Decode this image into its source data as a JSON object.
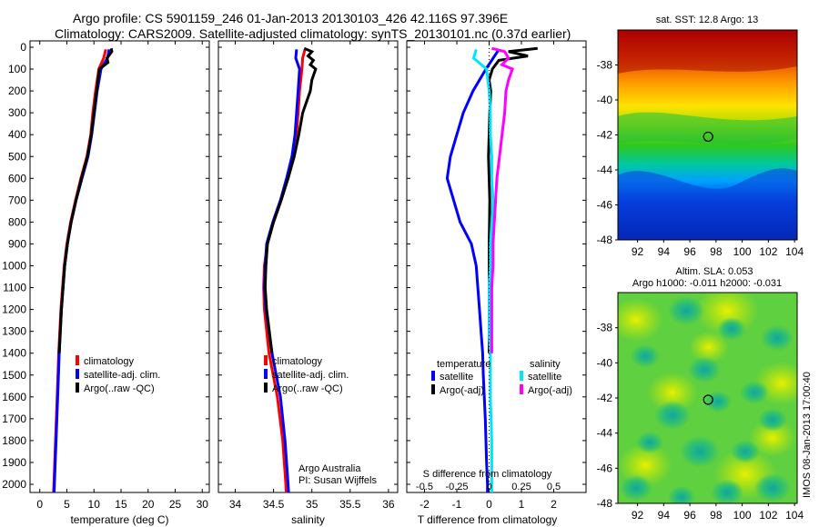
{
  "header": {
    "line1": "Argo profile: CS 5901159_246 01-Jan-2013 20130103_426 42.116S 97.396E",
    "line2": "Climatology: CARS2009. Satellite-adjusted climatology: synTS_20130101.nc (0.37d earlier)"
  },
  "side_stamp": "IMOS 08-Jan-2013 17:00:40",
  "depth_ticks": [
    "0",
    "100",
    "200",
    "300",
    "400",
    "500",
    "600",
    "700",
    "800",
    "900",
    "1000",
    "1100",
    "1200",
    "1300",
    "1400",
    "1500",
    "1600",
    "1700",
    "1800",
    "1900",
    "2000"
  ],
  "colors": {
    "climatology": "#ff0000",
    "satellite": "#0000ff",
    "argo": "#000000",
    "diff_s_sat": "#00e5ff",
    "diff_s_argo": "#ff00ff"
  },
  "chart_data": [
    {
      "type": "line",
      "panel": "temperature",
      "xlabel": "temperature (deg C)",
      "ylabel": "",
      "xlim": [
        -1,
        31
      ],
      "ylim": [
        2080,
        0
      ],
      "x_ticks": [
        "0",
        "5",
        "10",
        "15",
        "20",
        "25",
        "30"
      ],
      "legend": [
        "climatology",
        "satellite-adj. clim.",
        "Argo(..raw -QC)"
      ],
      "series": [
        {
          "name": "climatology",
          "depth": [
            10,
            50,
            100,
            200,
            300,
            400,
            500,
            600,
            700,
            800,
            900,
            1000,
            1200,
            1400,
            1600,
            1800,
            2000,
            2060
          ],
          "values": [
            12.2,
            11.8,
            10.9,
            10.3,
            9.8,
            9.4,
            8.7,
            7.6,
            6.6,
            5.7,
            5.0,
            4.5,
            3.9,
            3.5,
            3.2,
            2.9,
            2.6,
            2.5
          ]
        },
        {
          "name": "satellite-adj. clim.",
          "depth": [
            10,
            50,
            100,
            200,
            300,
            400,
            500,
            600,
            700,
            800,
            900,
            1000,
            1200,
            1400,
            1600,
            1800,
            2000,
            2060
          ],
          "values": [
            12.8,
            12.5,
            11.3,
            10.6,
            10.1,
            9.6,
            8.9,
            7.8,
            6.7,
            5.8,
            5.1,
            4.6,
            4.0,
            3.6,
            3.3,
            3.0,
            2.7,
            2.6
          ]
        },
        {
          "name": "Argo(..raw -QC)",
          "depth": [
            5,
            20,
            50,
            70,
            100,
            200,
            300,
            400,
            500,
            600,
            700,
            800,
            900,
            1000,
            1200,
            1400
          ],
          "values": [
            13.2,
            13.3,
            12.4,
            12.6,
            11.0,
            10.5,
            10.0,
            9.5,
            8.8,
            7.7,
            6.7,
            5.8,
            5.1,
            4.6,
            4.0,
            3.6
          ]
        }
      ]
    },
    {
      "type": "line",
      "panel": "salinity",
      "xlabel": "salinity",
      "ylabel": "",
      "xlim": [
        33.8,
        36.1
      ],
      "ylim": [
        2080,
        0
      ],
      "x_ticks": [
        "34",
        "34.5",
        "35",
        "35.5",
        "36"
      ],
      "legend": [
        "climatology",
        "satellite-adj. clim.",
        "Argo(..raw -QC)"
      ],
      "annotation": [
        "Argo Australia",
        "PI: Susan Wijffels"
      ],
      "series": [
        {
          "name": "climatology",
          "depth": [
            10,
            50,
            100,
            200,
            300,
            400,
            500,
            600,
            700,
            800,
            900,
            1000,
            1100,
            1200,
            1400,
            1600,
            1800,
            2000,
            2060
          ],
          "values": [
            34.91,
            34.88,
            34.87,
            34.84,
            34.82,
            34.8,
            34.75,
            34.68,
            34.6,
            34.5,
            34.42,
            34.38,
            34.37,
            34.38,
            34.44,
            34.55,
            34.62,
            34.66,
            34.67
          ]
        },
        {
          "name": "satellite-adj. clim.",
          "depth": [
            10,
            50,
            100,
            200,
            300,
            400,
            500,
            600,
            700,
            800,
            900,
            1000,
            1100,
            1200,
            1400,
            1600,
            1800,
            2000,
            2060
          ],
          "values": [
            34.8,
            34.79,
            34.84,
            34.82,
            34.8,
            34.78,
            34.74,
            34.67,
            34.59,
            34.49,
            34.41,
            34.39,
            34.38,
            34.4,
            34.48,
            34.59,
            34.65,
            34.69,
            34.7
          ]
        },
        {
          "name": "Argo(..raw -QC)",
          "depth": [
            5,
            20,
            40,
            60,
            80,
            100,
            150,
            200,
            300,
            400,
            500,
            600,
            700,
            800,
            900,
            1000,
            1100,
            1200,
            1400
          ],
          "values": [
            34.9,
            35.0,
            34.95,
            35.02,
            34.98,
            35.05,
            35.0,
            34.98,
            34.88,
            34.83,
            34.77,
            34.69,
            34.6,
            34.5,
            34.42,
            34.4,
            34.39,
            34.41,
            34.48
          ]
        }
      ]
    },
    {
      "type": "line",
      "panel": "difference",
      "xlabel": "T difference from climatology",
      "top_axis_label": "S difference from climatology",
      "xlim": [
        -2.5,
        3
      ],
      "ylim": [
        2080,
        0
      ],
      "x_ticks": [
        "-2",
        "-1",
        "0",
        "1",
        "2"
      ],
      "top_ticks": [
        "-0.5",
        "-0.25",
        "0",
        "0.25",
        "0.5"
      ],
      "legend_headers": [
        "temperature",
        "salinity"
      ],
      "legend": [
        "satellite",
        "Argo(-adj)",
        "satellite",
        "Argo(-adj)"
      ],
      "series": [
        {
          "name": "temperature satellite",
          "depth": [
            10,
            100,
            200,
            300,
            400,
            500,
            600,
            700,
            800,
            900,
            1000,
            1100,
            1200,
            1300,
            1400,
            1500,
            1600,
            1700,
            1800,
            1900,
            2000,
            2060
          ],
          "values": [
            0.3,
            -0.1,
            -0.5,
            -0.8,
            -1.0,
            -1.2,
            -1.3,
            -1.1,
            -0.9,
            -0.55,
            -0.4,
            -0.35,
            -0.3,
            -0.25,
            -0.2,
            -0.18,
            -0.15,
            -0.12,
            -0.1,
            -0.08,
            -0.05,
            -0.05
          ]
        },
        {
          "name": "temperature Argo(-adj)",
          "depth": [
            5,
            20,
            40,
            60,
            80,
            100,
            150,
            200,
            300,
            400,
            500,
            600,
            700,
            800,
            900,
            1000,
            1200,
            1400
          ],
          "values": [
            1.5,
            0.6,
            1.2,
            0.3,
            0.2,
            0.1,
            0.0,
            0.05,
            0.02,
            0.0,
            -0.02,
            0.0,
            0.02,
            0.01,
            0.0,
            0.0,
            0.02,
            0.0
          ]
        },
        {
          "name": "salinity satellite",
          "depth": [
            10,
            50,
            100,
            200,
            300,
            400,
            500,
            600,
            700,
            800,
            900,
            1000,
            1100,
            1200,
            1300,
            1400,
            1600,
            1800,
            2000,
            2060
          ],
          "values": [
            -0.1,
            -0.12,
            -0.02,
            0.0,
            0.01,
            0.01,
            0.02,
            0.02,
            0.03,
            0.02,
            0.01,
            0.01,
            0.0,
            0.0,
            0.0,
            0.01,
            0.01,
            0.02,
            0.02,
            0.02
          ]
        },
        {
          "name": "salinity Argo(-adj)",
          "depth": [
            5,
            20,
            50,
            80,
            100,
            150,
            200,
            300,
            400,
            500,
            600,
            700,
            800,
            900,
            1000,
            1100,
            1200,
            1400
          ],
          "values": [
            0.02,
            0.12,
            0.15,
            0.1,
            0.18,
            0.15,
            0.13,
            0.12,
            0.1,
            0.08,
            0.06,
            0.05,
            0.04,
            0.03,
            0.03,
            0.02,
            0.02,
            0.02
          ]
        }
      ]
    },
    {
      "type": "heatmap",
      "panel": "SST map",
      "title": "sat. SST: 12.8 Argo: 13",
      "xlim": [
        90.5,
        104.2
      ],
      "ylim": [
        -48,
        -36
      ],
      "x_ticks": [
        "92",
        "94",
        "96",
        "98",
        "100",
        "102",
        "104"
      ],
      "y_ticks": [
        "-38",
        "-40",
        "-42",
        "-44",
        "-46",
        "-48"
      ],
      "marker": {
        "lon": 97.4,
        "lat": -42.1
      }
    },
    {
      "type": "heatmap",
      "panel": "SLA map",
      "title": "Altim. SLA: 0.053",
      "subtitle": "Argo h1000: -0.011 h2000: -0.031",
      "xlim": [
        90.5,
        104.2
      ],
      "ylim": [
        -48,
        -36
      ],
      "x_ticks": [
        "92",
        "94",
        "96",
        "98",
        "100",
        "102",
        "104"
      ],
      "y_ticks": [
        "-38",
        "-40",
        "-42",
        "-44",
        "-46",
        "-48"
      ],
      "marker": {
        "lon": 97.4,
        "lat": -42.1
      }
    }
  ]
}
